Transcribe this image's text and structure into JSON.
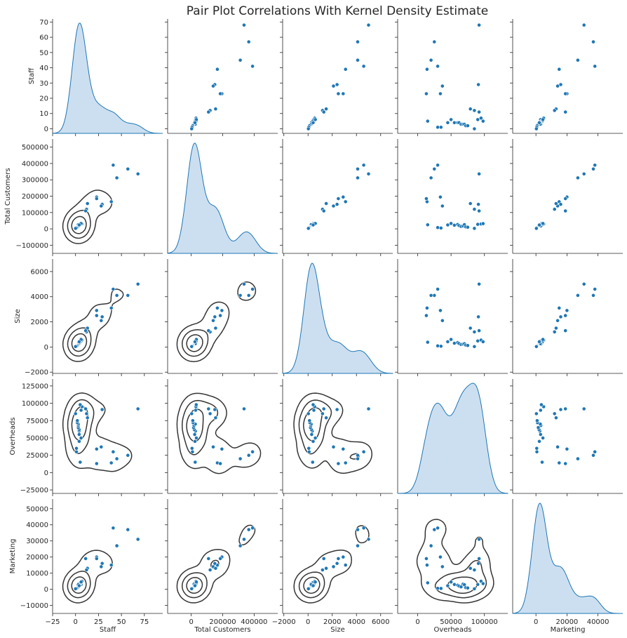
{
  "chart_data": {
    "type": "scatter",
    "title": "Pair Plot Correlations With Kernel Density Estimate",
    "variables": [
      "Staff",
      "Total Customers",
      "Size",
      "Overheads",
      "Marketing"
    ],
    "grid": false,
    "diagonal": "kde",
    "upper_triangle": "scatter",
    "lower_triangle": "kde contours + scatter",
    "colors": {
      "points": "#1f77b4",
      "kde_fill": "#c6dbef",
      "kde_line": "#1f77b4",
      "contours": "#333333"
    },
    "axes": {
      "Staff": {
        "lim": [
          -25,
          95
        ],
        "ticks": [
          -25,
          0,
          25,
          50,
          75
        ],
        "tick_labels": [
          "−25",
          "0",
          "25",
          "50",
          "75"
        ],
        "row_ticks": [
          0,
          10,
          20,
          30,
          40,
          50,
          60,
          70
        ],
        "row_lim": [
          -3,
          72
        ]
      },
      "Total Customers": {
        "lim": [
          -150000,
          550000
        ],
        "ticks": [
          0,
          200000,
          400000
        ],
        "tick_labels": [
          "0",
          "200000",
          "400000"
        ],
        "row_ticks": [
          -100000,
          0,
          100000,
          200000,
          300000,
          400000,
          500000
        ],
        "row_lim": [
          -150000,
          550000
        ]
      },
      "Size": {
        "lim": [
          -2100,
          7000
        ],
        "ticks": [
          -2000,
          0,
          2000,
          4000,
          6000
        ],
        "tick_labels": [
          "−2000",
          "0",
          "2000",
          "4000",
          "6000"
        ],
        "row_ticks": [
          -2000,
          0,
          2000,
          4000,
          6000
        ],
        "row_lim": [
          -2100,
          7000
        ]
      },
      "Overheads": {
        "lim": [
          -30000,
          135000
        ],
        "ticks": [
          0,
          50000,
          100000
        ],
        "tick_labels": [
          "0",
          "50000",
          "100000"
        ],
        "row_ticks": [
          -25000,
          0,
          25000,
          50000,
          75000,
          100000,
          125000
        ],
        "row_lim": [
          -30000,
          135000
        ]
      },
      "Marketing": {
        "lim": [
          -15000,
          56000
        ],
        "ticks": [
          0,
          20000,
          40000
        ],
        "tick_labels": [
          "0",
          "20000",
          "40000"
        ],
        "row_ticks": [
          -10000,
          0,
          10000,
          20000,
          30000,
          40000,
          50000
        ],
        "row_lim": [
          -15000,
          56000
        ]
      }
    },
    "rows": [
      {
        "Staff": 68,
        "Total Customers": 336000,
        "Size": 5000,
        "Overheads": 92000,
        "Marketing": 31000
      },
      {
        "Staff": 57,
        "Total Customers": 366000,
        "Size": 4100,
        "Overheads": 25000,
        "Marketing": 37000
      },
      {
        "Staff": 45,
        "Total Customers": 312000,
        "Size": 4100,
        "Overheads": 20000,
        "Marketing": 27000
      },
      {
        "Staff": 41,
        "Total Customers": 390000,
        "Size": 4600,
        "Overheads": 30000,
        "Marketing": 38000
      },
      {
        "Staff": 39,
        "Total Customers": 166000,
        "Size": 3100,
        "Overheads": 14000,
        "Marketing": 15000
      },
      {
        "Staff": 29,
        "Total Customers": 150000,
        "Size": 2400,
        "Overheads": 91000,
        "Marketing": 16000
      },
      {
        "Staff": 28,
        "Total Customers": 140000,
        "Size": 2100,
        "Overheads": 37000,
        "Marketing": 14000
      },
      {
        "Staff": 23,
        "Total Customers": 195000,
        "Size": 2900,
        "Overheads": 34000,
        "Marketing": 20000
      },
      {
        "Staff": 23,
        "Total Customers": 185000,
        "Size": 2500,
        "Overheads": 13000,
        "Marketing": 19000
      },
      {
        "Staff": 13,
        "Total Customers": 155000,
        "Size": 1500,
        "Overheads": 79000,
        "Marketing": 13000
      },
      {
        "Staff": 12,
        "Total Customers": 120000,
        "Size": 1200,
        "Overheads": 85000,
        "Marketing": 12000
      },
      {
        "Staff": 11,
        "Total Customers": 110000,
        "Size": 1300,
        "Overheads": 92000,
        "Marketing": 19000
      },
      {
        "Staff": 7,
        "Total Customers": 30000,
        "Size": 550,
        "Overheads": 95000,
        "Marketing": 5000
      },
      {
        "Staff": 6,
        "Total Customers": 28000,
        "Size": 480,
        "Overheads": 90000,
        "Marketing": 3000
      },
      {
        "Staff": 5,
        "Total Customers": 32000,
        "Size": 420,
        "Overheads": 98000,
        "Marketing": 3500
      },
      {
        "Staff": 5,
        "Total Customers": 25000,
        "Size": 380,
        "Overheads": 15000,
        "Marketing": 4000
      },
      {
        "Staff": 4,
        "Total Customers": 22000,
        "Size": 300,
        "Overheads": 55000,
        "Marketing": 3000
      },
      {
        "Staff": 4,
        "Total Customers": 27000,
        "Size": 350,
        "Overheads": 60000,
        "Marketing": 2500
      },
      {
        "Staff": 4,
        "Total Customers": 20000,
        "Size": 280,
        "Overheads": 62000,
        "Marketing": 2000
      },
      {
        "Staff": 3,
        "Total Customers": 15000,
        "Size": 200,
        "Overheads": 65000,
        "Marketing": 1500
      },
      {
        "Staff": 3,
        "Total Customers": 18000,
        "Size": 230,
        "Overheads": 68000,
        "Marketing": 3200
      },
      {
        "Staff": 3,
        "Total Customers": 26000,
        "Size": 260,
        "Overheads": 70000,
        "Marketing": 2800
      },
      {
        "Staff": 2,
        "Total Customers": 12000,
        "Size": 150,
        "Overheads": 72000,
        "Marketing": 1000
      },
      {
        "Staff": 2,
        "Total Customers": 10000,
        "Size": 120,
        "Overheads": 75000,
        "Marketing": 800
      },
      {
        "Staff": 1,
        "Total Customers": 8000,
        "Size": 90,
        "Overheads": 30000,
        "Marketing": 600
      },
      {
        "Staff": 1,
        "Total Customers": 5000,
        "Size": 60,
        "Overheads": 35000,
        "Marketing": 500
      },
      {
        "Staff": 0,
        "Total Customers": 3000,
        "Size": 30,
        "Overheads": 85000,
        "Marketing": 300
      },
      {
        "Staff": 6,
        "Total Customers": 33000,
        "Size": 600,
        "Overheads": 50000,
        "Marketing": 4500
      },
      {
        "Staff": 4,
        "Total Customers": 24000,
        "Size": 420,
        "Overheads": 45000,
        "Marketing": 2200
      }
    ]
  }
}
